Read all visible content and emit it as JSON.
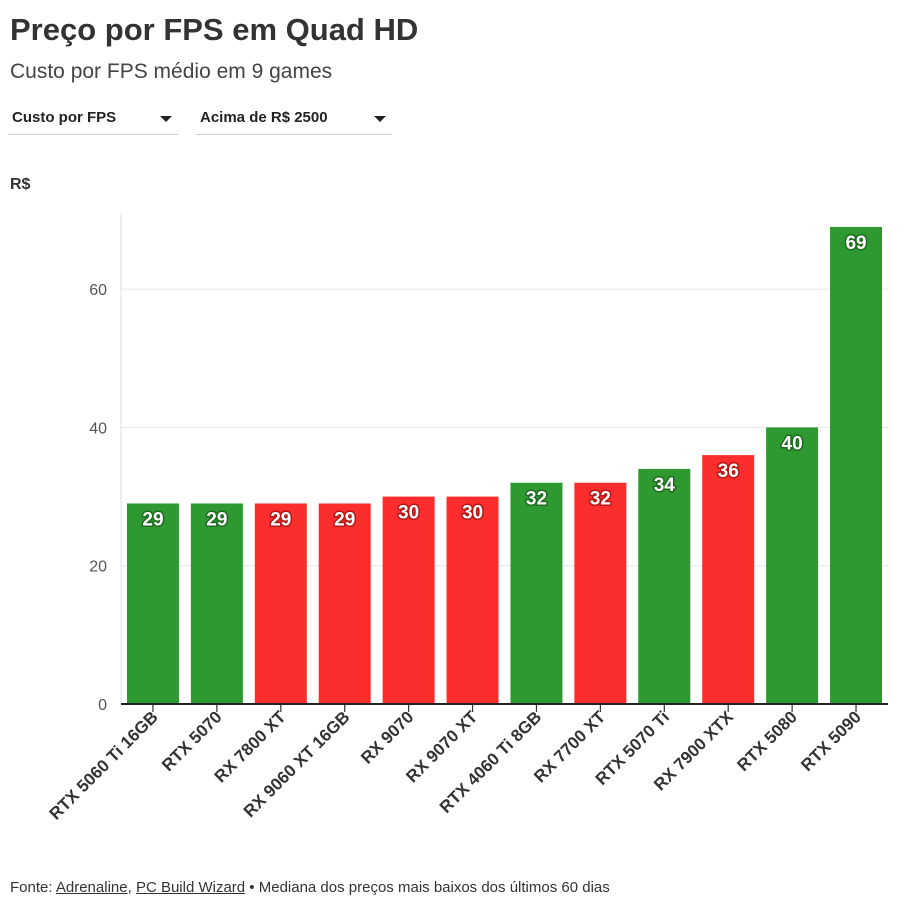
{
  "header": {
    "title": "Preço por FPS em Quad HD",
    "subtitle": "Custo por FPS médio em 9 games"
  },
  "filters": {
    "metric": "Custo por FPS",
    "price_range": "Acima de R$ 2500"
  },
  "footer": {
    "prefix": "Fonte: ",
    "source_1": "Adrenaline",
    "separator": ", ",
    "source_2": "PC Build Wizard",
    "note": " • Mediana dos preços mais baixos dos últimos 60 dias"
  },
  "colors": {
    "nvidia": "#2e9930",
    "amd": "#fc2d2d",
    "label_stroke_nvidia": "#1d6b1f",
    "label_stroke_amd": "#b51616"
  },
  "chart_data": {
    "type": "bar",
    "ylabel": "R$",
    "ylim": [
      0,
      70
    ],
    "yticks": [
      0,
      20,
      40,
      60
    ],
    "grid": true,
    "categories": [
      "RTX 5060 Ti 16GB",
      "RTX 5070",
      "RX 7800 XT",
      "RX 9060 XT 16GB",
      "RX 9070",
      "RX 9070 XT",
      "RTX 4060 Ti 8GB",
      "RX 7700 XT",
      "RTX 5070 Ti",
      "RX 7900 XTX",
      "RTX 5080",
      "RTX 5090"
    ],
    "values": [
      29,
      29,
      29,
      29,
      30,
      30,
      32,
      32,
      34,
      36,
      40,
      69
    ],
    "bar_colors": [
      "#2e9930",
      "#2e9930",
      "#fc2d2d",
      "#fc2d2d",
      "#fc2d2d",
      "#fc2d2d",
      "#2e9930",
      "#fc2d2d",
      "#2e9930",
      "#fc2d2d",
      "#2e9930",
      "#2e9930"
    ]
  }
}
